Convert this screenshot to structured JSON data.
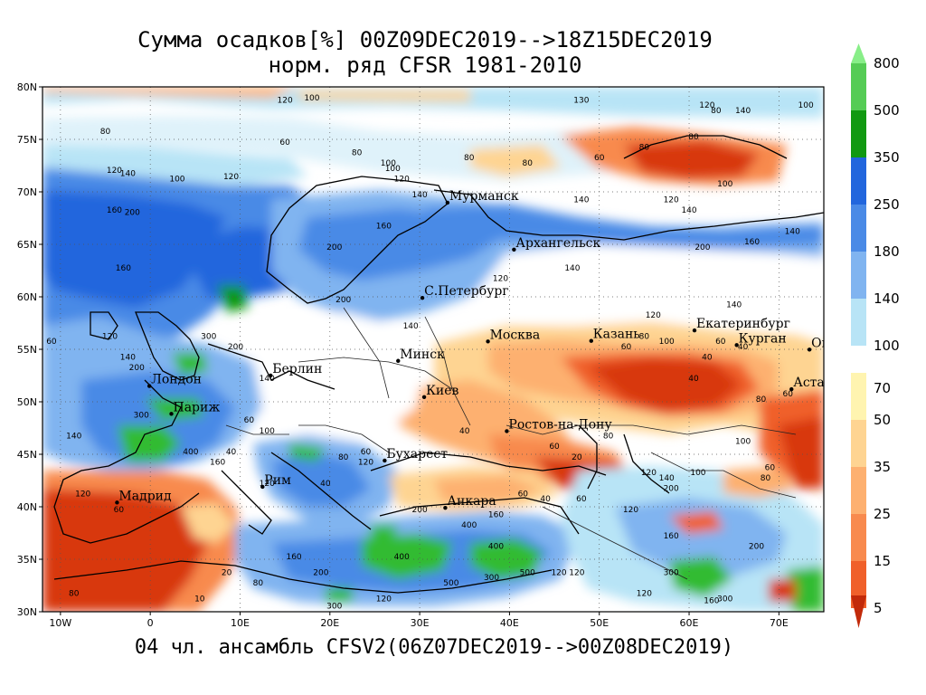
{
  "title_line1": "Сумма осадков[%] 00Z09DEC2019-->18Z15DEC2019",
  "title_line2": "норм. ряд CFSR 1981-2010",
  "footer": "04 чл. ансамбль CFSV2(06Z07DEC2019-->00Z08DEC2019)",
  "map": {
    "lon_range": [
      -12,
      75
    ],
    "lat_range": [
      30,
      80
    ],
    "lat_ticks": [
      "30N",
      "35N",
      "40N",
      "45N",
      "50N",
      "55N",
      "60N",
      "65N",
      "70N",
      "75N",
      "80N"
    ],
    "lon_ticks": [
      "10W",
      "0",
      "10E",
      "20E",
      "30E",
      "40E",
      "50E",
      "60E",
      "70E"
    ],
    "grid": "dotted"
  },
  "cities": [
    {
      "name": "Мурманск",
      "lon": 33.1,
      "lat": 68.97
    },
    {
      "name": "Архангельск",
      "lon": 40.5,
      "lat": 64.5
    },
    {
      "name": "С.Петербург",
      "lon": 30.3,
      "lat": 59.9
    },
    {
      "name": "Москва",
      "lon": 37.6,
      "lat": 55.75
    },
    {
      "name": "Казань",
      "lon": 49.1,
      "lat": 55.8
    },
    {
      "name": "Екатеринбург",
      "lon": 60.6,
      "lat": 56.8
    },
    {
      "name": "Курган",
      "lon": 65.3,
      "lat": 55.4
    },
    {
      "name": "Омск",
      "lon": 73.4,
      "lat": 54.97
    },
    {
      "name": "Астана",
      "lon": 71.4,
      "lat": 51.2
    },
    {
      "name": "Минск",
      "lon": 27.6,
      "lat": 53.9
    },
    {
      "name": "Киев",
      "lon": 30.5,
      "lat": 50.45
    },
    {
      "name": "Берлин",
      "lon": 13.4,
      "lat": 52.5
    },
    {
      "name": "Лондон",
      "lon": -0.1,
      "lat": 51.5
    },
    {
      "name": "Париж",
      "lon": 2.35,
      "lat": 48.85
    },
    {
      "name": "Мадрид",
      "lon": -3.7,
      "lat": 40.4
    },
    {
      "name": "Рим",
      "lon": 12.5,
      "lat": 41.9
    },
    {
      "name": "Бухарест",
      "lon": 26.1,
      "lat": 44.4
    },
    {
      "name": "Ростов-на-Дону",
      "lon": 39.7,
      "lat": 47.2
    },
    {
      "name": "Анкара",
      "lon": 32.85,
      "lat": 39.9
    }
  ],
  "contour_labels": [
    {
      "text": "80",
      "lon": -5,
      "lat": 75.5
    },
    {
      "text": "120",
      "lon": -4,
      "lat": 71.8
    },
    {
      "text": "140",
      "lon": -2.5,
      "lat": 71.5
    },
    {
      "text": "100",
      "lon": 3,
      "lat": 71
    },
    {
      "text": "120",
      "lon": 9,
      "lat": 71.2
    },
    {
      "text": "160",
      "lon": -4,
      "lat": 68
    },
    {
      "text": "200",
      "lon": -2,
      "lat": 67.8
    },
    {
      "text": "160",
      "lon": -3,
      "lat": 62.5
    },
    {
      "text": "60",
      "lon": -11,
      "lat": 55.5
    },
    {
      "text": "120",
      "lon": -4.5,
      "lat": 56
    },
    {
      "text": "140",
      "lon": -2.5,
      "lat": 54
    },
    {
      "text": "200",
      "lon": -1.5,
      "lat": 53
    },
    {
      "text": "300",
      "lon": -1,
      "lat": 48.5
    },
    {
      "text": "140",
      "lon": -8.5,
      "lat": 46.5
    },
    {
      "text": "400",
      "lon": 4.5,
      "lat": 45
    },
    {
      "text": "160",
      "lon": 7.5,
      "lat": 44
    },
    {
      "text": "120",
      "lon": -7.5,
      "lat": 41
    },
    {
      "text": "60",
      "lon": -3.5,
      "lat": 39.5
    },
    {
      "text": "80",
      "lon": -8.5,
      "lat": 31.5
    },
    {
      "text": "10",
      "lon": 5.5,
      "lat": 31
    },
    {
      "text": "120",
      "lon": 15,
      "lat": 78.5
    },
    {
      "text": "100",
      "lon": 18,
      "lat": 78.7
    },
    {
      "text": "60",
      "lon": 15,
      "lat": 74.5
    },
    {
      "text": "80",
      "lon": 23,
      "lat": 73.5
    },
    {
      "text": "100",
      "lon": 27,
      "lat": 72
    },
    {
      "text": "120",
      "lon": 28,
      "lat": 71
    },
    {
      "text": "140",
      "lon": 30,
      "lat": 69.5
    },
    {
      "text": "160",
      "lon": 26,
      "lat": 66.5
    },
    {
      "text": "200",
      "lon": 20.5,
      "lat": 64.5
    },
    {
      "text": "200",
      "lon": 21.5,
      "lat": 59.5
    },
    {
      "text": "140",
      "lon": 29,
      "lat": 57
    },
    {
      "text": "140",
      "lon": 13,
      "lat": 52
    },
    {
      "text": "200",
      "lon": 9.5,
      "lat": 55
    },
    {
      "text": "300",
      "lon": 6.5,
      "lat": 56
    },
    {
      "text": "120",
      "lon": 13,
      "lat": 42
    },
    {
      "text": "160",
      "lon": 16,
      "lat": 35
    },
    {
      "text": "200",
      "lon": 19,
      "lat": 33.5
    },
    {
      "text": "20",
      "lon": 8.5,
      "lat": 33.5
    },
    {
      "text": "80",
      "lon": 12,
      "lat": 32.5
    },
    {
      "text": "300",
      "lon": 20.5,
      "lat": 30.3
    },
    {
      "text": "120",
      "lon": 26,
      "lat": 31
    },
    {
      "text": "400",
      "lon": 28,
      "lat": 35
    },
    {
      "text": "500",
      "lon": 33.5,
      "lat": 32.5
    },
    {
      "text": "400",
      "lon": 38.5,
      "lat": 36
    },
    {
      "text": "500",
      "lon": 42,
      "lat": 33.5
    },
    {
      "text": "300",
      "lon": 38,
      "lat": 33
    },
    {
      "text": "120",
      "lon": 47.5,
      "lat": 33.5
    },
    {
      "text": "400",
      "lon": 35.5,
      "lat": 38
    },
    {
      "text": "160",
      "lon": 38.5,
      "lat": 39
    },
    {
      "text": "200",
      "lon": 30,
      "lat": 39.5
    },
    {
      "text": "300",
      "lon": 58,
      "lat": 33.5
    },
    {
      "text": "120",
      "lon": 55,
      "lat": 31.5
    },
    {
      "text": "160",
      "lon": 62.5,
      "lat": 30.8
    },
    {
      "text": "300",
      "lon": 64,
      "lat": 31
    },
    {
      "text": "200",
      "lon": 67.5,
      "lat": 36
    },
    {
      "text": "160",
      "lon": 58,
      "lat": 37
    },
    {
      "text": "120",
      "lon": 53.5,
      "lat": 39.5
    },
    {
      "text": "200",
      "lon": 58,
      "lat": 41.5
    },
    {
      "text": "120",
      "lon": 55.5,
      "lat": 43
    },
    {
      "text": "140",
      "lon": 57.5,
      "lat": 42.5
    },
    {
      "text": "100",
      "lon": 61,
      "lat": 43
    },
    {
      "text": "80",
      "lon": 68.5,
      "lat": 42.5
    },
    {
      "text": "60",
      "lon": 69,
      "lat": 43.5
    },
    {
      "text": "100",
      "lon": 66,
      "lat": 46
    },
    {
      "text": "80",
      "lon": 68,
      "lat": 50
    },
    {
      "text": "60",
      "lon": 71,
      "lat": 50.5
    },
    {
      "text": "40",
      "lon": 60.5,
      "lat": 52
    },
    {
      "text": "40",
      "lon": 62,
      "lat": 54
    },
    {
      "text": "60",
      "lon": 63.5,
      "lat": 55.5
    },
    {
      "text": "40",
      "lon": 66,
      "lat": 55
    },
    {
      "text": "60",
      "lon": 53,
      "lat": 55
    },
    {
      "text": "80",
      "lon": 55,
      "lat": 56
    },
    {
      "text": "100",
      "lon": 57.5,
      "lat": 55.5
    },
    {
      "text": "120",
      "lon": 56,
      "lat": 58
    },
    {
      "text": "140",
      "lon": 65,
      "lat": 59
    },
    {
      "text": "140",
      "lon": 47,
      "lat": 62.5
    },
    {
      "text": "120",
      "lon": 39,
      "lat": 61.5
    },
    {
      "text": "140",
      "lon": 48,
      "lat": 69
    },
    {
      "text": "200",
      "lon": 61.5,
      "lat": 64.5
    },
    {
      "text": "160",
      "lon": 67,
      "lat": 65
    },
    {
      "text": "140",
      "lon": 71.5,
      "lat": 66
    },
    {
      "text": "120",
      "lon": 58,
      "lat": 69
    },
    {
      "text": "140",
      "lon": 60,
      "lat": 68
    },
    {
      "text": "100",
      "lon": 64,
      "lat": 70.5
    },
    {
      "text": "80",
      "lon": 55,
      "lat": 74
    },
    {
      "text": "60",
      "lon": 50,
      "lat": 73
    },
    {
      "text": "80",
      "lon": 60.5,
      "lat": 75
    },
    {
      "text": "80",
      "lon": 63,
      "lat": 77.5
    },
    {
      "text": "120",
      "lon": 62,
      "lat": 78
    },
    {
      "text": "140",
      "lon": 66,
      "lat": 77.5
    },
    {
      "text": "100",
      "lon": 73,
      "lat": 78
    },
    {
      "text": "130",
      "lon": 48,
      "lat": 78.5
    },
    {
      "text": "80",
      "lon": 35.5,
      "lat": 73
    },
    {
      "text": "80",
      "lon": 42,
      "lat": 72.5
    },
    {
      "text": "100",
      "lon": 26.5,
      "lat": 72.5
    },
    {
      "text": "60",
      "lon": 45,
      "lat": 45.5
    },
    {
      "text": "40",
      "lon": 35,
      "lat": 47
    },
    {
      "text": "40",
      "lon": 19.5,
      "lat": 42
    },
    {
      "text": "100",
      "lon": 13,
      "lat": 47
    },
    {
      "text": "60",
      "lon": 11,
      "lat": 48
    },
    {
      "text": "40",
      "lon": 9,
      "lat": 45
    },
    {
      "text": "60",
      "lon": 24,
      "lat": 45
    },
    {
      "text": "80",
      "lon": 21.5,
      "lat": 44.5
    },
    {
      "text": "40",
      "lon": 44,
      "lat": 40.5
    },
    {
      "text": "60",
      "lon": 48,
      "lat": 40.5
    },
    {
      "text": "60",
      "lon": 41.5,
      "lat": 41
    },
    {
      "text": "20",
      "lon": 47.5,
      "lat": 44.5
    },
    {
      "text": "80",
      "lon": 51,
      "lat": 46.5
    },
    {
      "text": "120",
      "lon": 24,
      "lat": 44
    },
    {
      "text": "120",
      "lon": 45.5,
      "lat": 33.5
    }
  ],
  "legend": {
    "upper": [
      {
        "label": "800",
        "color": "#66dd66"
      },
      {
        "label": "500",
        "color": "#33bb33"
      },
      {
        "label": "350",
        "color": "#119911"
      },
      {
        "label": "250",
        "color": "#2266dd"
      },
      {
        "label": "180",
        "color": "#4a8ae6"
      },
      {
        "label": "140",
        "color": "#80b4f0"
      },
      {
        "label": "100",
        "color": "#b8e4f6"
      }
    ],
    "upper_top_color": "#88ee88",
    "lower": [
      {
        "label": "70",
        "color": "#fff4b0"
      },
      {
        "label": "50",
        "color": "#fed492"
      },
      {
        "label": "35",
        "color": "#fdb070"
      },
      {
        "label": "25",
        "color": "#f88a4e"
      },
      {
        "label": "15",
        "color": "#f0602a"
      },
      {
        "label": "5",
        "color": "#d8380f"
      }
    ],
    "lower_bottom_color": "#c22a0a"
  },
  "colors": {
    "white_band": "#ffffff",
    "dry_band": "#c8320e",
    "wet_band": "#1e5fd8"
  }
}
